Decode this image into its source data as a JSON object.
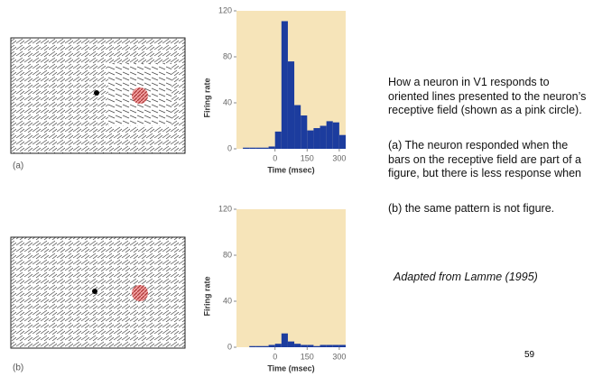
{
  "panel_labels": [
    "(a)",
    "(b)"
  ],
  "chart_data": [
    {
      "type": "histogram",
      "ylabel": "Firing rate",
      "xlabel": "Time (msec)",
      "color": "#1c3c9e",
      "background": "#f6e4b9",
      "bins": [
        -180,
        -150,
        -120,
        -90,
        -60,
        -30,
        0,
        30,
        60,
        90,
        120,
        150,
        180,
        210,
        240,
        270,
        300,
        330
      ],
      "values": [
        0,
        1,
        1,
        1,
        1,
        2,
        15,
        111,
        76,
        38,
        29,
        16,
        18,
        20,
        24,
        23,
        12
      ],
      "xlim": [
        -180,
        330
      ],
      "xticks": [
        0,
        150,
        300
      ],
      "ylim": [
        0,
        120
      ],
      "yticks": [
        0,
        40,
        80,
        120
      ]
    },
    {
      "type": "histogram",
      "ylabel": "Firing rate",
      "xlabel": "Time (msec)",
      "color": "#1c3c9e",
      "background": "#f6e4b9",
      "bins": [
        -180,
        -150,
        -120,
        -90,
        -60,
        -30,
        0,
        30,
        60,
        90,
        120,
        150,
        180,
        210,
        240,
        270,
        300,
        330
      ],
      "values": [
        0,
        0,
        1,
        1,
        1,
        2,
        3,
        12,
        5,
        3,
        2,
        2,
        1,
        2,
        2,
        2,
        2
      ],
      "xlim": [
        -180,
        330
      ],
      "xticks": [
        0,
        150,
        300
      ],
      "ylim": [
        0,
        120
      ],
      "yticks": [
        0,
        40,
        80,
        120
      ]
    }
  ],
  "text": {
    "paragraphs": [
      "How a neuron in V1 responds to oriented lines presented to the neuron’s receptive field (shown as a pink circle).",
      "(a) The neuron responded when the bars on the receptive field are part of a figure, but there is less response when",
      "(b) the same pattern is not figure."
    ],
    "credit": "Adapted from Lamme (1995)",
    "page_number": "59"
  }
}
